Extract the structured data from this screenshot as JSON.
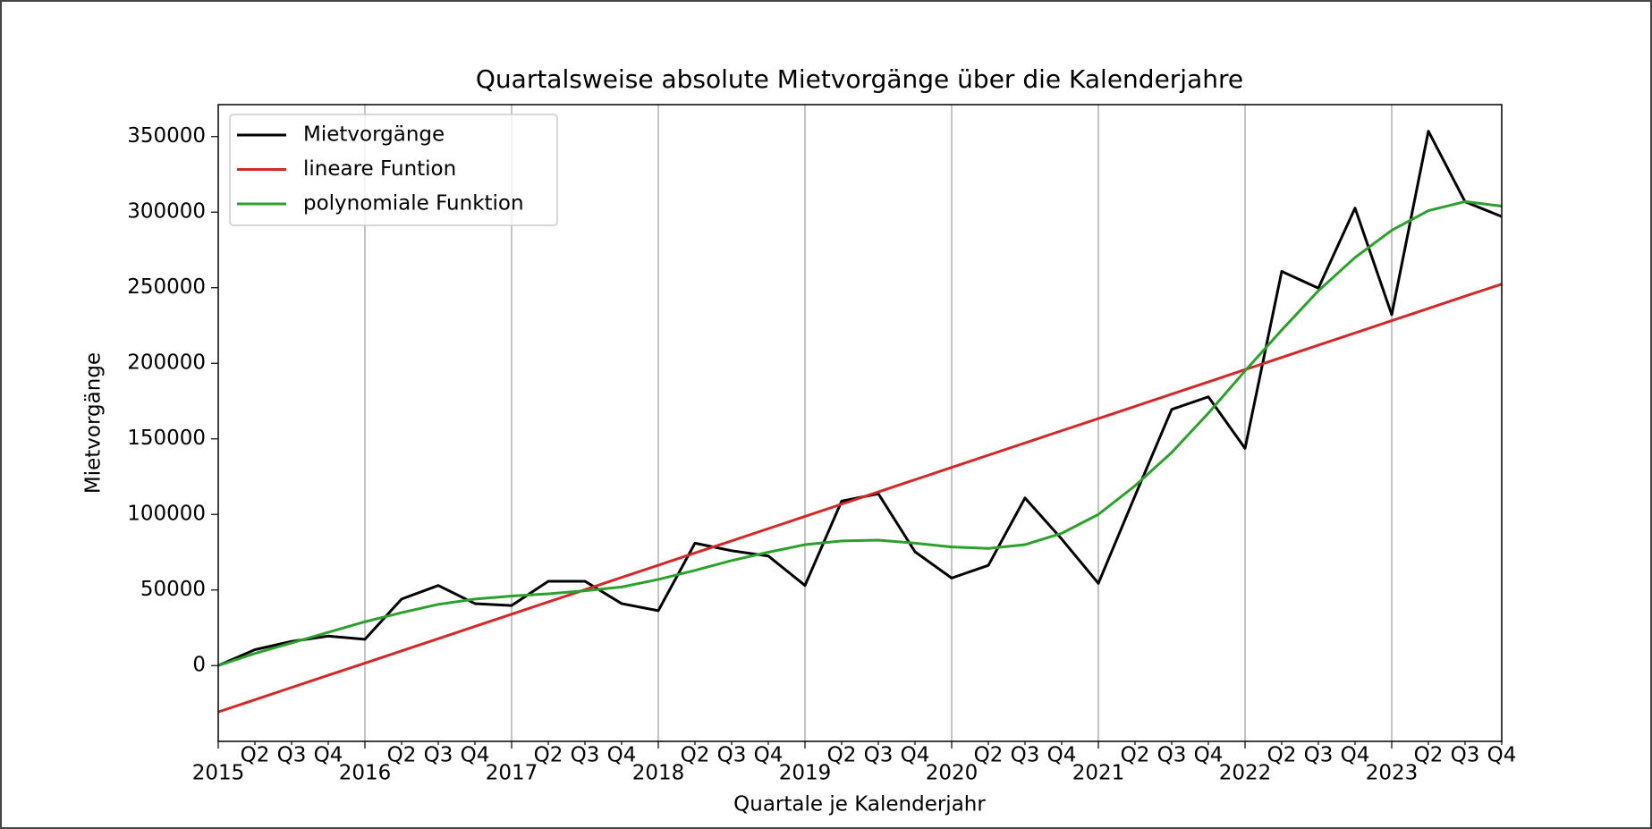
{
  "chart_data": {
    "type": "line",
    "title": "Quartalsweise absolute Mietvorgänge über die Kalenderjahre",
    "x_label": "Quartale je Kalenderjahr",
    "y_label": "Mietvorgänge",
    "categories": [
      "2015",
      "Q2",
      "Q3",
      "Q4",
      "2016",
      "Q2",
      "Q3",
      "Q4",
      "2017",
      "Q2",
      "Q3",
      "Q4",
      "2018",
      "Q2",
      "Q3",
      "Q4",
      "2019",
      "Q2",
      "Q3",
      "Q4",
      "2020",
      "Q2",
      "Q3",
      "Q4",
      "2021",
      "Q2",
      "Q3",
      "Q4",
      "2022",
      "Q2",
      "Q3",
      "Q4",
      "2023",
      "Q2",
      "Q3",
      "Q4"
    ],
    "series": [
      {
        "name": "Mietvorgänge",
        "color": "#000000",
        "values": [
          0,
          10500,
          16000,
          19500,
          17400,
          44000,
          53000,
          41000,
          39700,
          55800,
          55800,
          41000,
          36300,
          81000,
          76000,
          72500,
          53000,
          108800,
          113700,
          75300,
          57900,
          66300,
          110900,
          83700,
          54400,
          112300,
          169500,
          177800,
          143700,
          260800,
          249700,
          302700,
          232200,
          353600,
          306900,
          297100
        ]
      },
      {
        "name": "lineare Funtion",
        "color": "#d62728",
        "values": [
          -30700,
          -22600,
          -14500,
          -6400,
          1600,
          9700,
          17800,
          25900,
          34000,
          42100,
          50200,
          58300,
          66400,
          74500,
          82500,
          90600,
          98700,
          106800,
          114900,
          123000,
          131100,
          139200,
          147300,
          155400,
          163400,
          171500,
          179600,
          187700,
          195800,
          203900,
          212000,
          220100,
          228200,
          236300,
          244400,
          252400
        ]
      },
      {
        "name": "polynomiale Funktion",
        "color": "#2ca02c",
        "values": [
          0,
          8000,
          15000,
          22000,
          29000,
          35000,
          40500,
          44000,
          46000,
          47500,
          49500,
          52000,
          57000,
          63000,
          69500,
          75000,
          80000,
          82500,
          83000,
          81000,
          78500,
          77500,
          80000,
          87500,
          100000,
          119000,
          141000,
          167000,
          195000,
          222000,
          248000,
          270000,
          288000,
          301000,
          307000,
          304000
        ]
      }
    ],
    "ylim": [
      -50150,
      371150
    ],
    "yticks": [
      0,
      50000,
      100000,
      150000,
      200000,
      250000,
      300000,
      350000
    ],
    "grid": true,
    "legend": "upper left"
  }
}
